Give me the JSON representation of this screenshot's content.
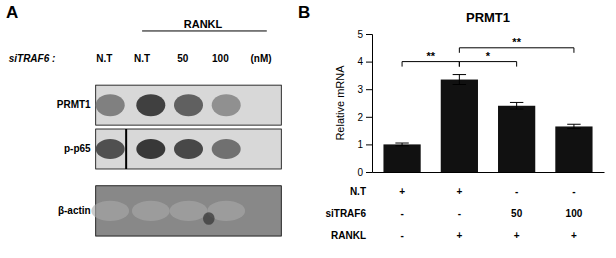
{
  "chart_data": [
    {
      "type": "blot",
      "panel_label": "A",
      "title": "RANKL",
      "x_label": "siTRAF6 :",
      "categories": [
        "N.T",
        "N.T",
        "50",
        "100",
        "(nM)"
      ],
      "rows": [
        "PRMT1",
        "p-p65",
        "β-actin"
      ]
    },
    {
      "type": "bar",
      "panel_label": "B",
      "title": "PRMT1",
      "ylabel": "Relative mRNA",
      "categories": [
        null,
        null,
        null,
        null
      ],
      "values": [
        1.0,
        3.35,
        2.4,
        1.65
      ],
      "errors": [
        0.05,
        0.18,
        0.12,
        0.08
      ],
      "color": "#111111",
      "ylim": [
        0,
        5
      ],
      "yticks": [
        0,
        1,
        2,
        3,
        4,
        5
      ],
      "tick_labels": "y",
      "annotations": [
        {
          "x1": 0,
          "x2": 1,
          "y": 4.0,
          "label": "**"
        },
        {
          "x1": 1,
          "x2": 2,
          "y": 4.0,
          "label": "*"
        },
        {
          "x1": 1,
          "x2": 3,
          "y": 4.5,
          "label": "**"
        }
      ],
      "table": {
        "row_labels": [
          "N.T",
          "siTRAF6",
          "RANKL"
        ],
        "rows": [
          [
            "+",
            "+",
            "-",
            "-"
          ],
          [
            "-",
            "-",
            "50",
            "100"
          ],
          [
            "-",
            "+",
            "+",
            "+"
          ]
        ]
      }
    }
  ]
}
